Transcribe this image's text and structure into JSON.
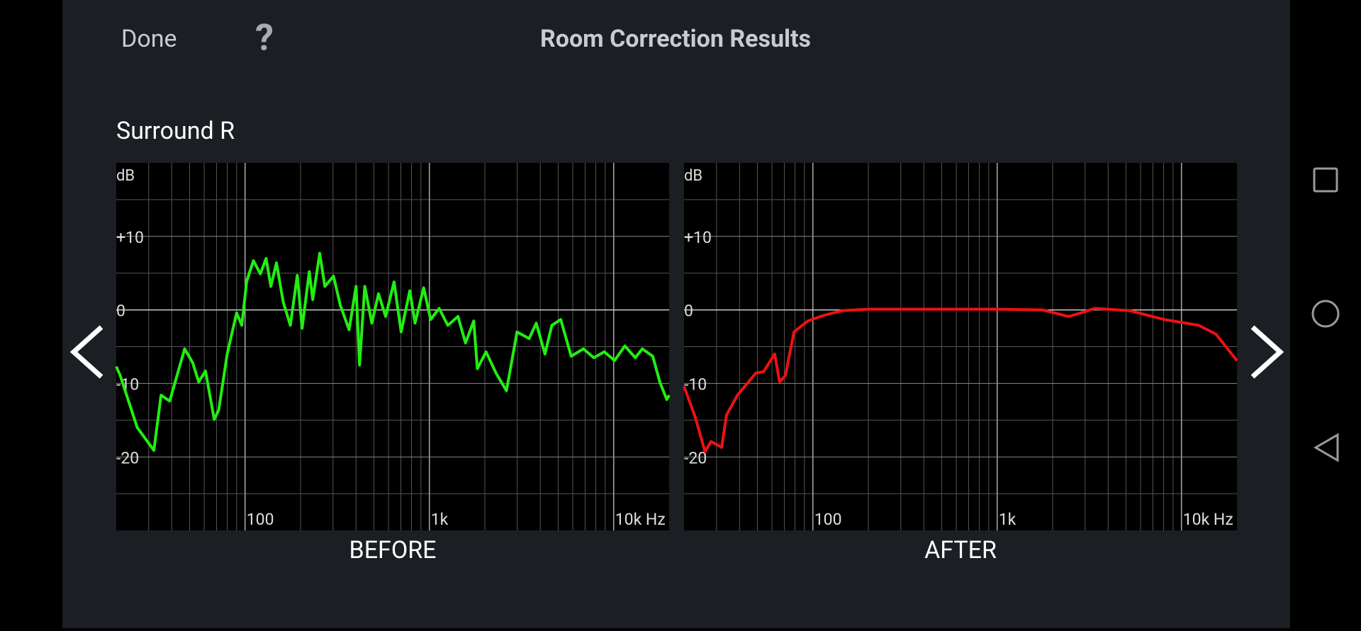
{
  "header": {
    "done": "Done",
    "help": "?",
    "title": "Room Correction Results"
  },
  "channel": "Surround R",
  "chart_data": [
    {
      "type": "line",
      "title": "BEFORE",
      "ylabel": "dB",
      "color": "#22ee11",
      "log_x": true,
      "grid": true,
      "xlim": [
        20,
        20000
      ],
      "ylim": [
        -30,
        20
      ],
      "xticks": [
        100,
        {
          "value": 1000,
          "label": "1k"
        },
        {
          "value": 10000,
          "label": "10k Hz"
        }
      ],
      "yticks": [
        {
          "value": 10,
          "label": "+10"
        },
        0,
        -10,
        -20
      ],
      "minor_xticks": [
        30,
        40,
        50,
        60,
        70,
        80,
        90,
        200,
        300,
        400,
        500,
        600,
        700,
        800,
        900,
        2000,
        3000,
        4000,
        5000,
        6000,
        7000,
        8000,
        9000
      ],
      "minor_yticks": [
        15,
        5,
        -5,
        -15,
        -25
      ],
      "x": [
        20,
        21,
        26,
        32,
        35,
        39,
        47,
        52,
        56,
        61,
        68,
        72,
        80,
        90,
        96,
        102,
        111,
        121,
        130,
        138,
        148,
        161,
        176,
        192,
        204,
        223,
        233,
        254,
        271,
        302,
        329,
        367,
        400,
        418,
        446,
        487,
        530,
        579,
        643,
        703,
        783,
        836,
        931,
        1016,
        1130,
        1260,
        1430,
        1570,
        1740,
        1820,
        2030,
        2300,
        2620,
        2990,
        3480,
        3800,
        4240,
        4620,
        5160,
        5880,
        6850,
        7800,
        8900,
        10100,
        11500,
        13100,
        14300,
        16300,
        17800,
        19400,
        20000
      ],
      "values": [
        -7.7,
        -8.9,
        -16,
        -19.1,
        -11.6,
        -12.4,
        -5.3,
        -7.2,
        -9.8,
        -8.3,
        -14.9,
        -13.6,
        -6,
        -0.4,
        -2.1,
        3.9,
        6.7,
        4.9,
        7,
        3.2,
        6.4,
        1.1,
        -2.1,
        4.7,
        -2.5,
        5.2,
        1.4,
        7.7,
        3.2,
        4.6,
        0.6,
        -2.7,
        3.2,
        -7.5,
        3.2,
        -1.8,
        2.2,
        -0.9,
        3.8,
        -3,
        2.6,
        -1.8,
        3,
        -1.3,
        0.2,
        -2.1,
        -0.9,
        -4.5,
        -1.5,
        -8,
        -5.7,
        -8.6,
        -11,
        -3,
        -3.9,
        -1.8,
        -6,
        -2.1,
        -1.3,
        -6.3,
        -5.3,
        -6.5,
        -5.7,
        -6.9,
        -4.9,
        -6.5,
        -5.3,
        -6.3,
        -9.8,
        -12.2,
        -11.6
      ]
    },
    {
      "type": "line",
      "title": "AFTER",
      "ylabel": "dB",
      "color": "#ee1111",
      "log_x": true,
      "grid": true,
      "xlim": [
        20,
        20000
      ],
      "ylim": [
        -30,
        20
      ],
      "xticks": [
        100,
        {
          "value": 1000,
          "label": "1k"
        },
        {
          "value": 10000,
          "label": "10k Hz"
        }
      ],
      "yticks": [
        {
          "value": 10,
          "label": "+10"
        },
        0,
        -10,
        -20
      ],
      "minor_xticks": [
        30,
        40,
        50,
        60,
        70,
        80,
        90,
        200,
        300,
        400,
        500,
        600,
        700,
        800,
        900,
        2000,
        3000,
        4000,
        5000,
        6000,
        7000,
        8000,
        9000
      ],
      "minor_yticks": [
        15,
        5,
        -5,
        -15,
        -25
      ],
      "x": [
        20,
        23,
        26,
        28,
        32,
        34,
        39,
        49,
        54,
        62,
        66,
        71,
        79,
        94,
        116,
        145,
        200,
        345,
        594,
        1000,
        1760,
        2440,
        2850,
        3380,
        5220,
        8030,
        12400,
        15400,
        20000
      ],
      "values": [
        -10.4,
        -14.6,
        -19.3,
        -17.9,
        -18.7,
        -14.3,
        -11.6,
        -8.6,
        -8.4,
        -6,
        -9.8,
        -8.9,
        -3,
        -1.5,
        -0.7,
        -0.1,
        0.1,
        0.1,
        0.1,
        0.1,
        0,
        -0.9,
        -0.4,
        0.2,
        -0.1,
        -1.3,
        -2.1,
        -3.3,
        -6.9
      ]
    }
  ]
}
